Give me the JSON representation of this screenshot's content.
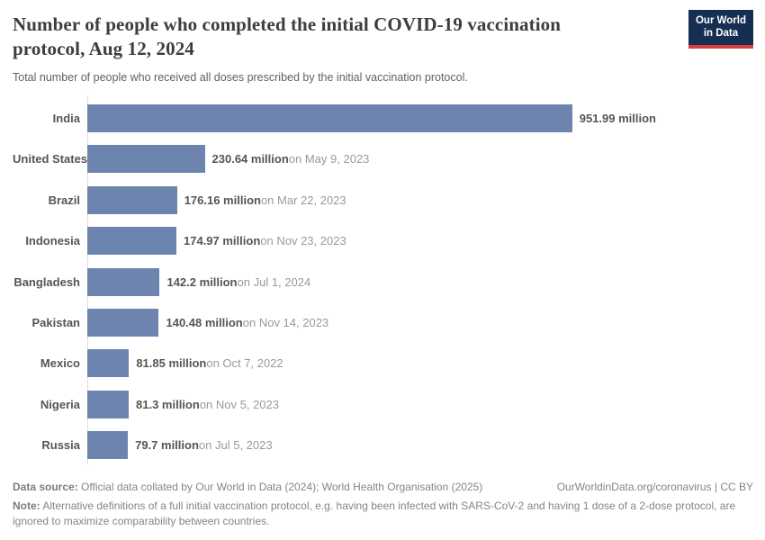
{
  "header": {
    "title": "Number of people who completed the initial COVID-19 vaccination protocol, Aug 12, 2024",
    "subtitle": "Total number of people who received all doses prescribed by the initial vaccination protocol.",
    "logo": {
      "line1": "Our World",
      "line2": "in Data"
    }
  },
  "chart_data": {
    "type": "bar",
    "orientation": "horizontal",
    "title": "Number of people who completed the initial COVID-19 vaccination protocol, Aug 12, 2024",
    "categories": [
      "India",
      "United States",
      "Brazil",
      "Indonesia",
      "Bangladesh",
      "Pakistan",
      "Mexico",
      "Nigeria",
      "Russia"
    ],
    "values": [
      951.99,
      230.64,
      176.16,
      174.97,
      142.2,
      140.48,
      81.85,
      81.3,
      79.7
    ],
    "unit": "million",
    "value_labels": [
      "951.99 million",
      "230.64 million",
      "176.16 million",
      "174.97 million",
      "142.2 million",
      "140.48 million",
      "81.85 million",
      "81.3 million",
      "79.7 million"
    ],
    "date_labels": [
      "",
      "on May 9, 2023",
      "on Mar 22, 2023",
      "on Nov 23, 2023",
      "on Jul 1, 2024",
      "on Nov 14, 2023",
      "on Oct 7, 2022",
      "on Nov 5, 2023",
      "on Jul 5, 2023"
    ],
    "bar_color": "#6d85ae",
    "axis_color": "#dedede",
    "xlim": [
      0,
      1300
    ],
    "grid": false,
    "legend": false
  },
  "footer": {
    "source_label": "Data source:",
    "source_text": "Official data collated by Our World in Data (2024); World Health Organisation (2025)",
    "link_text": "OurWorldinData.org/coronavirus | CC BY",
    "note_label": "Note:",
    "note_text": "Alternative definitions of a full initial vaccination protocol, e.g. having been infected with SARS-CoV-2 and having 1 dose of a 2-dose protocol, are ignored to maximize comparability between countries."
  }
}
